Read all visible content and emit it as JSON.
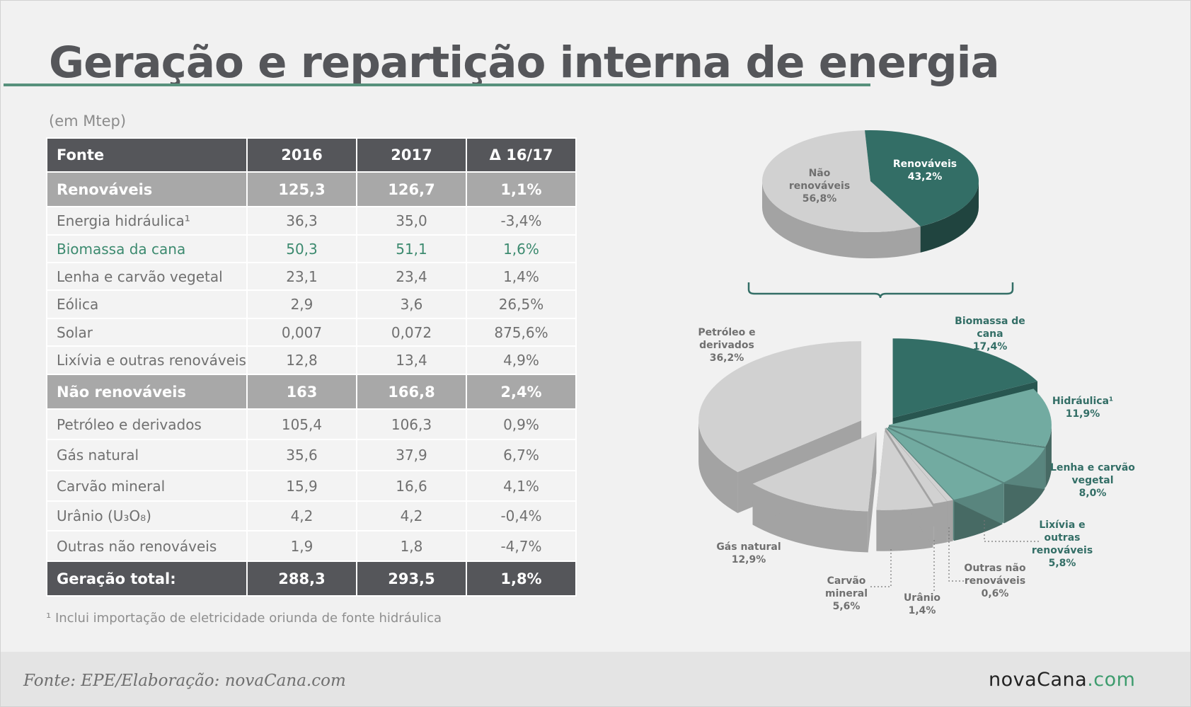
{
  "title": "Geração e repartição interna de energia",
  "unit": "(em Mtep)",
  "table": {
    "columns": [
      "Fonte",
      "2016",
      "2017",
      "Δ 16/17"
    ],
    "rows": [
      {
        "kind": "group",
        "cells": [
          "Renováveis",
          "125,3",
          "126,7",
          "1,1%"
        ]
      },
      {
        "kind": "sub",
        "cells": [
          "Energia hidráulica¹",
          "36,3",
          "35,0",
          "-3,4%"
        ]
      },
      {
        "kind": "sub green",
        "cells": [
          "Biomassa da cana",
          "50,3",
          "51,1",
          "1,6%"
        ]
      },
      {
        "kind": "sub",
        "cells": [
          "Lenha e carvão vegetal",
          "23,1",
          "23,4",
          "1,4%"
        ]
      },
      {
        "kind": "sub",
        "cells": [
          "Eólica",
          "2,9",
          "3,6",
          "26,5%"
        ]
      },
      {
        "kind": "sub",
        "cells": [
          "Solar",
          "0,007",
          "0,072",
          "875,6%"
        ]
      },
      {
        "kind": "sub",
        "cells": [
          "Lixívia e outras renováveis",
          "12,8",
          "13,4",
          "4,9%"
        ]
      },
      {
        "kind": "group",
        "cells": [
          "Não renováveis",
          "163",
          "166,8",
          "2,4%"
        ]
      },
      {
        "kind": "sub",
        "cells": [
          "Petróleo e derivados",
          "105,4",
          "106,3",
          "0,9%"
        ]
      },
      {
        "kind": "sub",
        "cells": [
          "Gás natural",
          "35,6",
          "37,9",
          "6,7%"
        ]
      },
      {
        "kind": "sub",
        "cells": [
          "Carvão mineral",
          "15,9",
          "16,6",
          "4,1%"
        ]
      },
      {
        "kind": "sub",
        "cells": [
          "Urânio (U₃O₈)",
          "4,2",
          "4,2",
          "-0,4%"
        ]
      },
      {
        "kind": "sub",
        "cells": [
          "Outras não renováveis",
          "1,9",
          "1,8",
          "-4,7%"
        ]
      },
      {
        "kind": "total",
        "cells": [
          "Geração total:",
          "288,3",
          "293,5",
          "1,8%"
        ]
      }
    ]
  },
  "footnote": "¹ Inclui importação de eletricidade oriunda de fonte hidráulica",
  "source": "Fonte: EPE/Elaboração: novaCana.com",
  "logo": {
    "main": "novaCana",
    "suffix": ".com"
  },
  "colors": {
    "dark_gray": "#55565a",
    "brand_green": "#57917c",
    "renewable_dark": "#336e66",
    "renewable_light": "#72aba1",
    "nonrenewable": "#d1d1d1"
  },
  "chart_data": [
    {
      "type": "pie",
      "slices": [
        {
          "label": [
            "Renováveis",
            "43,2%"
          ],
          "value": 43.2,
          "color": "#336e66"
        },
        {
          "label": [
            "Não",
            "renováveis",
            "56,8%"
          ],
          "value": 56.8,
          "color": "#d1d1d1"
        }
      ]
    },
    {
      "type": "pie",
      "slices": [
        {
          "label": [
            "Biomassa de",
            "cana",
            "17,4%"
          ],
          "value": 17.4,
          "color": "#336e66"
        },
        {
          "label": [
            "Hidráulica¹",
            "11,9%"
          ],
          "value": 11.9,
          "color": "#72aba1"
        },
        {
          "label": [
            "Lenha e carvão",
            "vegetal",
            "8,0%"
          ],
          "value": 8.0,
          "color": "#72aba1"
        },
        {
          "label": [
            "Lixívia e",
            "outras",
            "renováveis",
            "5,8%"
          ],
          "value": 5.8,
          "color": "#72aba1"
        },
        {
          "label": [
            "Outras não",
            "renováveis",
            "0,6%"
          ],
          "value": 0.6,
          "color": "#d1d1d1"
        },
        {
          "label": [
            "Urânio",
            "1,4%"
          ],
          "value": 1.4,
          "color": "#d1d1d1"
        },
        {
          "label": [
            "Carvão",
            "mineral",
            "5,6%"
          ],
          "value": 5.6,
          "color": "#d1d1d1"
        },
        {
          "label": [
            "Gás natural",
            "12,9%"
          ],
          "value": 12.9,
          "color": "#d1d1d1"
        },
        {
          "label": [
            "Petróleo e",
            "derivados",
            "36,2%"
          ],
          "value": 36.2,
          "color": "#d1d1d1"
        }
      ]
    }
  ]
}
